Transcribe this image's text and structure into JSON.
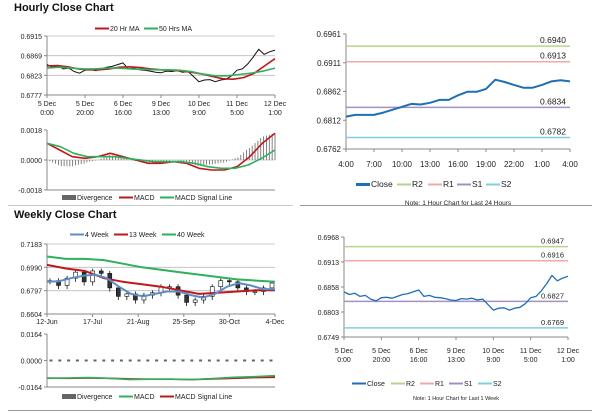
{
  "hourly_title": "Hourly Close Chart",
  "weekly_title": "Weekly Close Chart",
  "colors": {
    "close": "#1f6fb5",
    "ma20": "#c0171d",
    "ma50": "#2fb05a",
    "r2": "#b7d48a",
    "r1": "#f0a8a8",
    "s1": "#a48fc6",
    "s2": "#7fd0dc",
    "candle": "#111111",
    "divergence": "#666666",
    "wk4": "#5b8ec7",
    "wk13": "#c0171d",
    "wk40": "#2fb05a"
  },
  "chart_data": [
    {
      "id": "hourly-price",
      "type": "line",
      "legend": [
        "20 Hr MA",
        "50 Hrs MA"
      ],
      "legend_placement": "top",
      "yticks": [
        "0.6915",
        "0.6869",
        "0.6823",
        "0.6777"
      ],
      "ylim": [
        0.6777,
        0.6915
      ],
      "xticks": [
        [
          "5 Dec",
          "0:00"
        ],
        [
          "5 Dec",
          "20:00"
        ],
        [
          "6 Dec",
          "16:00"
        ],
        [
          "9 Dec",
          "13:00"
        ],
        [
          "10 Dec",
          "9:00"
        ],
        [
          "11 Dec",
          "5:00"
        ],
        [
          "12 Dec",
          "1:00"
        ]
      ],
      "grid": true,
      "series": [
        {
          "name": "Close",
          "values": [
            0.6848,
            0.6842,
            0.6845,
            0.6838,
            0.684,
            0.6832,
            0.6828,
            0.6835,
            0.6836,
            0.6834,
            0.6838,
            0.6842,
            0.6844,
            0.6848,
            0.6852,
            0.6838,
            0.684,
            0.6836,
            0.6835,
            0.6833,
            0.683,
            0.6829,
            0.6833,
            0.6832,
            0.6834,
            0.683,
            0.6832,
            0.682,
            0.6808,
            0.6812,
            0.6813,
            0.6808,
            0.6812,
            0.6814,
            0.6822,
            0.6835,
            0.6838,
            0.685,
            0.6866,
            0.6884,
            0.6872,
            0.6878,
            0.6882
          ]
        },
        {
          "name": "20 Hr MA",
          "values": [
            0.6845,
            0.6846,
            0.6843,
            0.6838,
            0.6836,
            0.6836,
            0.6838,
            0.6842,
            0.6843,
            0.6841,
            0.6838,
            0.6836,
            0.6835,
            0.6833,
            0.683,
            0.6826,
            0.682,
            0.6815,
            0.6814,
            0.6818,
            0.6828,
            0.6845,
            0.6862
          ]
        },
        {
          "name": "50 Hrs MA",
          "values": [
            0.684,
            0.6842,
            0.684,
            0.6838,
            0.6838,
            0.684,
            0.684,
            0.6838,
            0.6837,
            0.6836,
            0.6836,
            0.6835,
            0.6832,
            0.6826,
            0.6822,
            0.6822,
            0.6825,
            0.6828,
            0.6833,
            0.684
          ]
        }
      ]
    },
    {
      "id": "hourly-macd",
      "type": "line",
      "legend": [
        "Divergence",
        "MACD",
        "MACD Signal Line"
      ],
      "legend_placement": "bottom",
      "yticks": [
        "0.0018",
        "0.0000",
        "-0.0018"
      ],
      "ylim": [
        -0.0018,
        0.0018
      ],
      "series": [
        {
          "name": "MACD",
          "values": [
            0.001,
            0.0006,
            0.0002,
            0.0001,
            0.0002,
            0.0004,
            0.0002,
            0.0,
            -0.0002,
            -0.0002,
            -0.0001,
            -0.0002,
            -0.0005,
            -0.0006,
            -0.0006,
            -0.0004,
            0.0002,
            0.001,
            0.0016
          ]
        },
        {
          "name": "MACD Signal Line",
          "values": [
            0.001,
            0.0008,
            0.0004,
            0.0002,
            0.0002,
            0.0002,
            0.0001,
            0.0,
            -0.0001,
            -0.0001,
            -0.0001,
            -0.0002,
            -0.0004,
            -0.0005,
            -0.0005,
            -0.0003,
            0.0001,
            0.0006
          ]
        }
      ]
    },
    {
      "id": "hourly-24h",
      "type": "line",
      "legend": [
        "Close",
        "R2",
        "R1",
        "S1",
        "S2"
      ],
      "legend_placement": "bottom",
      "note": "Note: 1 Hour Chart for Last 24 Hours",
      "yticks": [
        "0.6961",
        "0.6911",
        "0.6862",
        "0.6812",
        "0.6762"
      ],
      "ylim": [
        0.6762,
        0.6961
      ],
      "xticks": [
        "4:00",
        "7:00",
        "10:00",
        "13:00",
        "16:00",
        "19:00",
        "22:00",
        "1:00",
        "4:00"
      ],
      "levels": {
        "R2": 0.694,
        "R1": 0.6913,
        "S1": 0.6834,
        "S2": 0.6782
      },
      "level_labels": {
        "R2": "0.6940",
        "R1": "0.6913",
        "S1": "0.6834",
        "S2": "0.6782"
      },
      "series": [
        {
          "name": "Close",
          "values": [
            0.6818,
            0.6821,
            0.6821,
            0.6821,
            0.6825,
            0.683,
            0.6835,
            0.684,
            0.6839,
            0.6842,
            0.6847,
            0.6847,
            0.6855,
            0.6861,
            0.6861,
            0.6866,
            0.6882,
            0.6878,
            0.6873,
            0.6868,
            0.6868,
            0.6873,
            0.6879,
            0.6881,
            0.6879
          ]
        }
      ]
    },
    {
      "id": "weekly-price",
      "type": "candlestick",
      "legend": [
        "4 Week",
        "13 Week",
        "40 Week"
      ],
      "legend_placement": "top",
      "yticks": [
        "0.7183",
        "0.6990",
        "0.6797",
        "0.6604"
      ],
      "ylim": [
        0.6604,
        0.7183
      ],
      "xticks": [
        "12-Jun",
        "17-Jul",
        "21-Aug",
        "25-Sep",
        "30-Oct",
        "4-Dec"
      ],
      "grid": true,
      "candles_close": [
        0.688,
        0.684,
        0.69,
        0.695,
        0.687,
        0.696,
        0.694,
        0.682,
        0.675,
        0.677,
        0.672,
        0.676,
        0.678,
        0.683,
        0.683,
        0.676,
        0.67,
        0.672,
        0.675,
        0.683,
        0.688,
        0.687,
        0.682,
        0.679,
        0.679,
        0.682,
        0.686
      ],
      "series": [
        {
          "name": "4 Week",
          "values": [
            0.687,
            0.6875,
            0.69,
            0.692,
            0.693,
            0.69,
            0.683,
            0.677,
            0.675,
            0.677,
            0.679,
            0.679,
            0.676,
            0.674,
            0.677,
            0.683,
            0.686,
            0.684,
            0.681,
            0.681
          ]
        },
        {
          "name": "13 Week",
          "values": [
            0.701,
            0.698,
            0.696,
            0.69,
            0.687,
            0.685,
            0.683,
            0.68,
            0.677,
            0.678,
            0.679,
            0.68,
            0.68
          ]
        },
        {
          "name": "40 Week",
          "values": [
            0.708,
            0.706,
            0.706,
            0.705,
            0.702,
            0.699,
            0.697,
            0.695,
            0.693,
            0.691,
            0.689,
            0.688,
            0.687
          ]
        }
      ]
    },
    {
      "id": "weekly-macd",
      "type": "line",
      "legend": [
        "Divergence",
        "MACD",
        "MACD Signal Line"
      ],
      "legend_placement": "bottom",
      "yticks": [
        "0.0164",
        "0.0000",
        "-0.0164"
      ],
      "ylim": [
        -0.0164,
        0.0164
      ],
      "series": [
        {
          "name": "MACD",
          "values": [
            -0.011,
            -0.0108,
            -0.0106,
            -0.011,
            -0.0118,
            -0.0116,
            -0.0116,
            -0.0118,
            -0.0112,
            -0.0104,
            -0.01,
            -0.0094
          ]
        },
        {
          "name": "MACD Signal Line",
          "values": [
            -0.0108,
            -0.011,
            -0.0108,
            -0.011,
            -0.0114,
            -0.0116,
            -0.0116,
            -0.0118,
            -0.0114,
            -0.011,
            -0.0106,
            -0.0104
          ]
        }
      ]
    },
    {
      "id": "hourly-week",
      "type": "line",
      "legend": [
        "Close",
        "R2",
        "R1",
        "S1",
        "S2"
      ],
      "legend_placement": "bottom",
      "note": "Note: 1 Hour Chart for Last 1 Week",
      "yticks": [
        "0.6968",
        "0.6913",
        "0.6858",
        "0.6803",
        "0.6749"
      ],
      "ylim": [
        0.6749,
        0.6968
      ],
      "xticks": [
        [
          "5 Dec",
          "0:00"
        ],
        [
          "5 Dec",
          "20:00"
        ],
        [
          "6 Dec",
          "16:00"
        ],
        [
          "9 Dec",
          "13:00"
        ],
        [
          "10 Dec",
          "9:00"
        ],
        [
          "11 Dec",
          "5:00"
        ],
        [
          "12 Dec",
          "1:00"
        ]
      ],
      "levels": {
        "R2": 0.6947,
        "R1": 0.6916,
        "S1": 0.6827,
        "S2": 0.6769
      },
      "level_labels": {
        "R2": "0.6947",
        "R1": "0.6916",
        "S1": "0.6827",
        "S2": "0.6769"
      },
      "series": [
        {
          "name": "Close",
          "values": [
            0.6848,
            0.6842,
            0.6845,
            0.6838,
            0.684,
            0.6832,
            0.6828,
            0.6835,
            0.6836,
            0.6834,
            0.6838,
            0.6842,
            0.6844,
            0.6848,
            0.6852,
            0.6838,
            0.684,
            0.6836,
            0.6835,
            0.6833,
            0.683,
            0.6829,
            0.6833,
            0.6832,
            0.6834,
            0.683,
            0.6832,
            0.682,
            0.6808,
            0.6812,
            0.6813,
            0.6808,
            0.6812,
            0.6814,
            0.6822,
            0.6835,
            0.6838,
            0.685,
            0.6866,
            0.6884,
            0.6872,
            0.6878,
            0.6882
          ]
        }
      ]
    }
  ]
}
